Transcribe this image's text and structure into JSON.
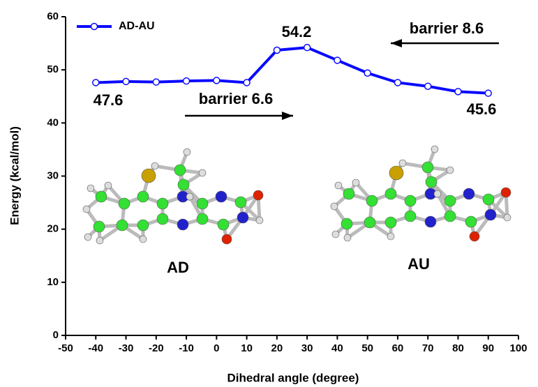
{
  "chart_data": {
    "type": "line",
    "x_label": "Dihedral angle (degree)",
    "y_label": "Energy (kcal/mol)",
    "x": [
      -40,
      -30,
      -20,
      -10,
      0,
      10,
      20,
      30,
      40,
      50,
      60,
      70,
      80,
      90
    ],
    "series": [
      {
        "name": "AD-AU",
        "color": "#0a0aff",
        "values": [
          47.6,
          47.8,
          47.7,
          47.9,
          48.0,
          47.6,
          53.7,
          54.2,
          51.8,
          49.4,
          47.6,
          46.9,
          45.9,
          45.6
        ]
      }
    ],
    "xlim": [
      -50,
      100
    ],
    "xticks": [
      -50,
      -40,
      -30,
      -20,
      -10,
      0,
      10,
      20,
      30,
      40,
      50,
      60,
      70,
      80,
      90,
      100
    ],
    "ylim": [
      0,
      60
    ],
    "yticks": [
      0,
      10,
      20,
      30,
      40,
      50,
      60
    ],
    "legend": "upper left",
    "annotations": [
      "54.2",
      "47.6",
      "45.6",
      "barrier 6.6",
      "barrier 8.6",
      "AD",
      "AU"
    ]
  }
}
